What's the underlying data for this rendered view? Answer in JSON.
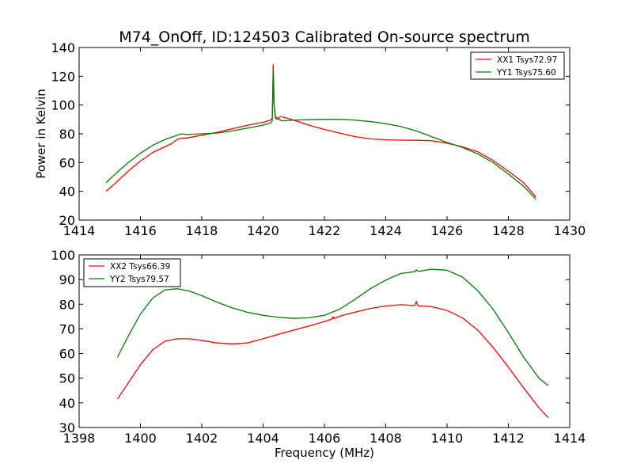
{
  "figure": {
    "title": "M74_OnOff, ID:124503 Calibrated On-source spectrum"
  },
  "colors": {
    "series_red": "#ff0000",
    "series_green": "#008000"
  },
  "chart_data": [
    {
      "type": "line",
      "title": "M74_OnOff, ID:124503 Calibrated On-source spectrum",
      "xlabel": "",
      "ylabel": "Power in Kelvin",
      "xlim": [
        1414,
        1430
      ],
      "ylim": [
        20,
        140
      ],
      "xticks": [
        1414,
        1416,
        1418,
        1420,
        1422,
        1424,
        1426,
        1428,
        1430
      ],
      "yticks": [
        20,
        40,
        60,
        80,
        100,
        120,
        140
      ],
      "grid": false,
      "legend": "top-right",
      "series": [
        {
          "name": "XX1 Tsys72.97",
          "color": "#ff0000",
          "x": [
            1414.88,
            1415.2,
            1415.6,
            1416.0,
            1416.4,
            1416.8,
            1417.0,
            1417.2,
            1417.35,
            1417.5,
            1418.0,
            1418.5,
            1419.0,
            1419.5,
            1420.0,
            1420.25,
            1420.3,
            1420.33,
            1420.36,
            1420.4,
            1420.45,
            1420.5,
            1420.6,
            1421.0,
            1421.5,
            1422.0,
            1422.5,
            1423.0,
            1423.5,
            1424.0,
            1424.5,
            1425.0,
            1425.5,
            1426.0,
            1426.5,
            1427.0,
            1427.5,
            1428.0,
            1428.5,
            1428.9
          ],
          "y": [
            40,
            46,
            54,
            61,
            67,
            71,
            73,
            76,
            77,
            77,
            79,
            81,
            83.5,
            86,
            88,
            89.5,
            91,
            128,
            100,
            92,
            91,
            91,
            92,
            89.5,
            86,
            83,
            80.5,
            78,
            76.5,
            75.8,
            75.6,
            75.5,
            75.2,
            73.5,
            71,
            67.5,
            61.5,
            54,
            46,
            36
          ]
        },
        {
          "name": "YY1 Tsys75.60",
          "color": "#008000",
          "x": [
            1414.88,
            1415.2,
            1415.6,
            1416.0,
            1416.4,
            1416.8,
            1417.0,
            1417.2,
            1417.35,
            1417.5,
            1418.0,
            1418.5,
            1419.0,
            1419.5,
            1420.0,
            1420.25,
            1420.3,
            1420.33,
            1420.36,
            1420.4,
            1420.45,
            1420.5,
            1420.6,
            1421.0,
            1421.5,
            1422.0,
            1422.5,
            1423.0,
            1423.5,
            1424.0,
            1424.5,
            1425.0,
            1425.5,
            1426.0,
            1426.5,
            1427.0,
            1427.5,
            1428.0,
            1428.5,
            1428.9
          ],
          "y": [
            46,
            52.5,
            60,
            66.5,
            72,
            76,
            77.5,
            79,
            80,
            79.5,
            80,
            80.5,
            82,
            84,
            86,
            87.5,
            89,
            124,
            100,
            91,
            90,
            90.5,
            89,
            89.5,
            89.8,
            90,
            90,
            89.5,
            88.5,
            87,
            85,
            82,
            78,
            74,
            70.5,
            66,
            60,
            52,
            43.5,
            34.5
          ]
        }
      ]
    },
    {
      "type": "line",
      "title": "",
      "xlabel": "Frequency (MHz)",
      "ylabel": "",
      "xlim": [
        1398,
        1414
      ],
      "ylim": [
        30,
        100
      ],
      "xticks": [
        1398,
        1400,
        1402,
        1404,
        1406,
        1408,
        1410,
        1412,
        1414
      ],
      "yticks": [
        30,
        40,
        50,
        60,
        70,
        80,
        90,
        100
      ],
      "grid": false,
      "legend": "top-left",
      "series": [
        {
          "name": "XX2 Tsys66.39",
          "color": "#ff0000",
          "x": [
            1399.25,
            1399.6,
            1400.0,
            1400.4,
            1400.8,
            1401.2,
            1401.6,
            1402.0,
            1402.5,
            1403.0,
            1403.5,
            1404.0,
            1404.5,
            1405.0,
            1405.5,
            1406.0,
            1406.25,
            1406.28,
            1406.31,
            1406.5,
            1407.0,
            1407.5,
            1408.0,
            1408.5,
            1408.95,
            1409.0,
            1409.05,
            1409.5,
            1410.0,
            1410.5,
            1411.0,
            1411.5,
            1412.0,
            1412.5,
            1413.0,
            1413.3
          ],
          "y": [
            41.5,
            48,
            55.5,
            61.5,
            65,
            66,
            66,
            65.3,
            64.3,
            63.9,
            64.3,
            66,
            67.8,
            69.5,
            71.2,
            73,
            74,
            75,
            74.2,
            75.2,
            76.8,
            78.3,
            79.3,
            79.8,
            79.5,
            81.2,
            79.4,
            79,
            77.5,
            74.5,
            69.5,
            62.5,
            54.5,
            46,
            38,
            34
          ]
        },
        {
          "name": "YY2 Tsys79.57",
          "color": "#008000",
          "x": [
            1399.25,
            1399.6,
            1400.0,
            1400.4,
            1400.8,
            1401.2,
            1401.6,
            1402.0,
            1402.5,
            1403.0,
            1403.5,
            1404.0,
            1404.5,
            1405.0,
            1405.5,
            1406.0,
            1406.5,
            1407.0,
            1407.5,
            1408.0,
            1408.5,
            1408.95,
            1409.0,
            1409.05,
            1409.5,
            1410.0,
            1410.5,
            1411.0,
            1411.5,
            1412.0,
            1412.5,
            1413.0,
            1413.3
          ],
          "y": [
            58.5,
            67,
            76,
            82.5,
            85.8,
            86.3,
            85.3,
            83.5,
            80.8,
            78.5,
            76.7,
            75.5,
            74.7,
            74.3,
            74.5,
            75.5,
            78,
            82,
            86.3,
            89.8,
            92.5,
            93.2,
            94,
            93.3,
            94.2,
            93.8,
            91,
            85.5,
            78,
            68.5,
            58.5,
            50,
            47
          ]
        }
      ]
    }
  ]
}
